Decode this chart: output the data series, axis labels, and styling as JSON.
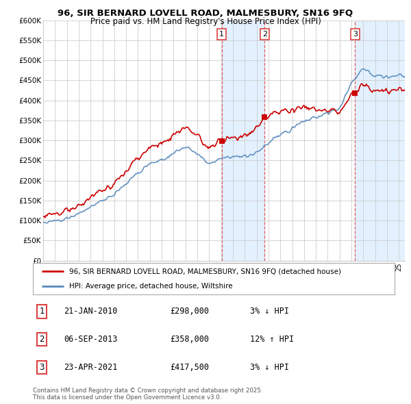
{
  "title_line1": "96, SIR BERNARD LOVELL ROAD, MALMESBURY, SN16 9FQ",
  "title_line2": "Price paid vs. HM Land Registry's House Price Index (HPI)",
  "ylim": [
    0,
    600000
  ],
  "yticks": [
    0,
    50000,
    100000,
    150000,
    200000,
    250000,
    300000,
    350000,
    400000,
    450000,
    500000,
    550000,
    600000
  ],
  "ytick_labels": [
    "£0",
    "£50K",
    "£100K",
    "£150K",
    "£200K",
    "£250K",
    "£300K",
    "£350K",
    "£400K",
    "£450K",
    "£500K",
    "£550K",
    "£600K"
  ],
  "sale_t": [
    2010.055,
    2013.677,
    2021.31
  ],
  "sale_prices": [
    298000,
    358000,
    417500
  ],
  "sale_labels": [
    "1",
    "2",
    "3"
  ],
  "legend_entry1": "96, SIR BERNARD LOVELL ROAD, MALMESBURY, SN16 9FQ (detached house)",
  "legend_entry2": "HPI: Average price, detached house, Wiltshire",
  "table_entries": [
    {
      "num": "1",
      "date": "21-JAN-2010",
      "price": "£298,000",
      "change": "3% ↓ HPI"
    },
    {
      "num": "2",
      "date": "06-SEP-2013",
      "price": "£358,000",
      "change": "12% ↑ HPI"
    },
    {
      "num": "3",
      "date": "23-APR-2021",
      "price": "£417,500",
      "change": "3% ↓ HPI"
    }
  ],
  "footer": "Contains HM Land Registry data © Crown copyright and database right 2025.\nThis data is licensed under the Open Government Licence v3.0.",
  "red_color": "#cc0000",
  "blue_color": "#5588bb",
  "fill_color": "#ddeeff",
  "background_color": "#ffffff",
  "grid_color": "#cccccc",
  "span_color": "#ddeeff",
  "vline_color": "#dd4444",
  "xlim_left": 1995.0,
  "xlim_right": 2025.5
}
